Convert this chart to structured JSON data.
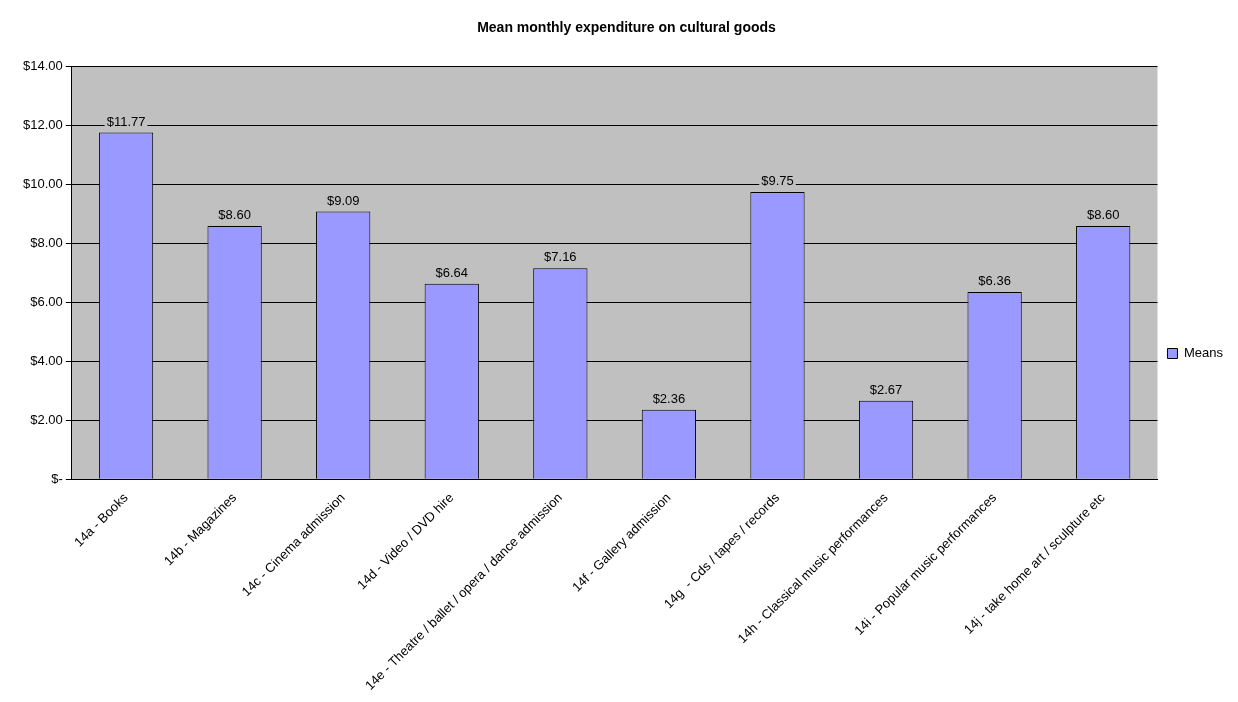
{
  "chart_data": {
    "type": "bar",
    "title": "Mean monthly expenditure on cultural goods",
    "categories": [
      "14a - Books",
      "14b - Magazines",
      "14c - Cinema admission",
      "14d - Video / DVD hire",
      "14e - Theatre / ballet / opera / dance admission",
      "14f - Gallery admission",
      "14g  - Cds / tapes / records",
      "14h - Classical music performances",
      "14i - Popular music performances",
      "14j - take home art / sculpture etc"
    ],
    "series": [
      {
        "name": "Means",
        "color": "#9999ff",
        "values": [
          11.77,
          8.6,
          9.09,
          6.64,
          7.16,
          2.36,
          9.75,
          2.67,
          6.36,
          8.6
        ],
        "value_labels": [
          "$11.77",
          "$8.60",
          "$9.09",
          "$6.64",
          "$7.16",
          "$2.36",
          "$9.75",
          "$2.67",
          "$6.36",
          "$8.60"
        ]
      }
    ],
    "ylim": [
      0,
      14
    ],
    "yticks": [
      {
        "value": 0,
        "label": "$-"
      },
      {
        "value": 2,
        "label": "$2.00"
      },
      {
        "value": 4,
        "label": "$4.00"
      },
      {
        "value": 6,
        "label": "$6.00"
      },
      {
        "value": 8,
        "label": "$8.00"
      },
      {
        "value": 10,
        "label": "$10.00"
      },
      {
        "value": 12,
        "label": "$12.00"
      },
      {
        "value": 14,
        "label": "$14.00"
      }
    ],
    "grid": "y",
    "legend": "right"
  }
}
